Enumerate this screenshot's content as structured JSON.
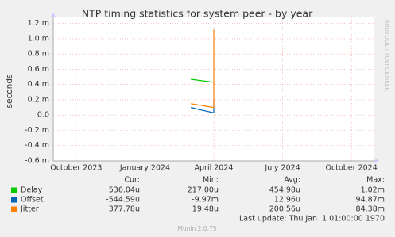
{
  "chart_data": {
    "type": "line",
    "title": "NTP timing statistics for system peer - by year",
    "y_label": "seconds",
    "side_label": "RRDTOOL / TOBI OETIKER",
    "x": [
      "2024-03",
      "2024-04",
      "2024-04"
    ],
    "xlim": [
      "2023-09",
      "2024-11"
    ],
    "xticks": [
      {
        "value": "2023-10",
        "label": "October 2023"
      },
      {
        "value": "2024-01",
        "label": "January 2024"
      },
      {
        "value": "2024-04",
        "label": "April 2024"
      },
      {
        "value": "2024-07",
        "label": "July 2024"
      },
      {
        "value": "2024-10",
        "label": "October 2024"
      }
    ],
    "ylim": [
      -0.0006,
      0.00128
    ],
    "yticks": [
      {
        "value": -0.0006,
        "label": "-0.6 m"
      },
      {
        "value": -0.0004,
        "label": "-0.4 m"
      },
      {
        "value": -0.0002,
        "label": "-0.2 m"
      },
      {
        "value": 0,
        "label": "0.0"
      },
      {
        "value": 0.0002,
        "label": "0.2 m"
      },
      {
        "value": 0.0004,
        "label": "0.4 m"
      },
      {
        "value": 0.0006,
        "label": "0.6 m"
      },
      {
        "value": 0.0008,
        "label": "0.8 m"
      },
      {
        "value": 0.001,
        "label": "1.0 m"
      },
      {
        "value": 0.0012,
        "label": "1.2 m"
      }
    ],
    "grid": true,
    "series": [
      {
        "name": "Delay",
        "color": "#00cc00",
        "values": [
          0.00047,
          0.00043,
          0.00043
        ],
        "stats": [
          "536.04u",
          "217.00u",
          "454.98u",
          "1.02m"
        ]
      },
      {
        "name": "Offset",
        "color": "#0066b3",
        "values": [
          0.0001,
          3e-05,
          0.0002
        ],
        "stats": [
          "-544.59u",
          "-9.97m",
          "12.96u",
          "94.87m"
        ]
      },
      {
        "name": "Jitter",
        "color": "#ff8000",
        "values": [
          0.00015,
          0.0001,
          0.00112
        ],
        "stats": [
          "377.78u",
          "19.48u",
          "200.56u",
          "84.38m"
        ]
      }
    ],
    "stat_headers": [
      "Cur:",
      "Min:",
      "Avg:",
      "Max:"
    ],
    "last_update": "Last update: Thu Jan  1 01:00:00 1970",
    "footer": "Munin 2.0.75"
  }
}
